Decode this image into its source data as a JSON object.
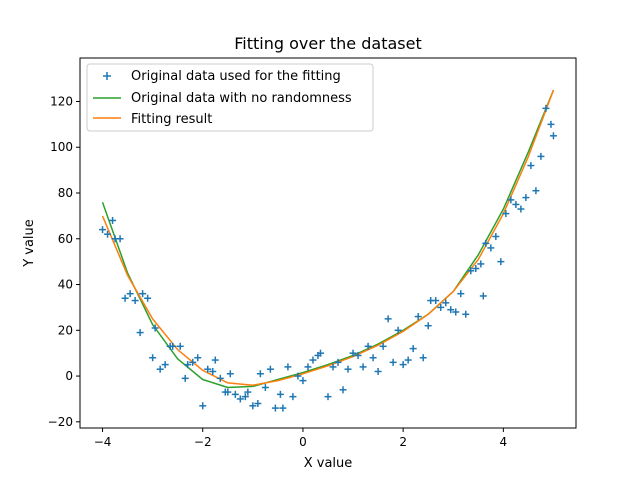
{
  "chart_data": {
    "type": "scatter",
    "title": "Fitting over the dataset",
    "xlabel": "X value",
    "ylabel": "Y value",
    "xlim": [
      -4.45,
      5.45
    ],
    "ylim": [
      -22.7,
      139.0
    ],
    "xticks": [
      -4,
      -2,
      0,
      2,
      4
    ],
    "yticks": [
      -20,
      0,
      20,
      40,
      60,
      80,
      100,
      120
    ],
    "legend_position": "top-left",
    "grid": false,
    "colors": {
      "scatter": "#1f77b4",
      "true_curve": "#2ca02c",
      "fit_curve": "#ff7f0e"
    },
    "series": [
      {
        "name": "Original data used for the fitting",
        "kind": "scatter",
        "marker": "plus",
        "x": [
          -4.0,
          -3.9,
          -3.8,
          -3.75,
          -3.65,
          -3.55,
          -3.45,
          -3.35,
          -3.25,
          -3.2,
          -3.1,
          -3.0,
          -2.95,
          -2.85,
          -2.75,
          -2.65,
          -2.6,
          -2.45,
          -2.35,
          -2.3,
          -2.2,
          -2.1,
          -2.0,
          -1.9,
          -1.8,
          -1.75,
          -1.65,
          -1.55,
          -1.5,
          -1.45,
          -1.35,
          -1.25,
          -1.15,
          -1.1,
          -1.0,
          -0.9,
          -0.85,
          -0.75,
          -0.65,
          -0.55,
          -0.45,
          -0.4,
          -0.3,
          -0.2,
          -0.1,
          0.0,
          0.1,
          0.2,
          0.3,
          0.35,
          0.5,
          0.6,
          0.7,
          0.8,
          0.9,
          1.0,
          1.1,
          1.2,
          1.3,
          1.4,
          1.5,
          1.6,
          1.7,
          1.8,
          1.9,
          2.0,
          2.1,
          2.2,
          2.3,
          2.4,
          2.5,
          2.55,
          2.65,
          2.75,
          2.85,
          2.95,
          3.05,
          3.15,
          3.25,
          3.35,
          3.45,
          3.55,
          3.6,
          3.65,
          3.75,
          3.85,
          3.95,
          4.05,
          4.15,
          4.25,
          4.35,
          4.45,
          4.55,
          4.65,
          4.75,
          4.85,
          4.95,
          5.0
        ],
        "y": [
          64,
          62,
          68,
          60,
          60,
          34,
          36,
          33,
          19,
          36,
          34,
          8,
          21,
          3,
          5,
          13,
          13,
          13,
          -1,
          5,
          6,
          8,
          -13,
          3,
          2,
          7,
          -1,
          -7,
          -7,
          1,
          -8,
          -10,
          -9,
          -7,
          -13,
          -12,
          1,
          -5,
          3,
          -14,
          -8,
          -14,
          4,
          -9,
          0,
          -2,
          4,
          7,
          9,
          10,
          -9,
          4,
          6,
          -6,
          3,
          10,
          9,
          4,
          13,
          8,
          2,
          13,
          25,
          6,
          20,
          5,
          7,
          12,
          26,
          8,
          22,
          33,
          33,
          30,
          32,
          29,
          28,
          36,
          27,
          46,
          47,
          49,
          35,
          58,
          56,
          61,
          50,
          71,
          77,
          75,
          73,
          78,
          92,
          81,
          96,
          117,
          110,
          105
        ]
      },
      {
        "name": "Original data with no randomness",
        "kind": "line",
        "x": [
          -4.0,
          -3.5,
          -3.0,
          -2.5,
          -2.0,
          -1.5,
          -1.0,
          -0.5,
          0.0,
          0.5,
          1.0,
          1.5,
          2.0,
          2.5,
          3.0,
          3.5,
          4.0,
          4.5,
          5.0
        ],
        "y": [
          76,
          45,
          22.5,
          7.5,
          -1.5,
          -5,
          -4.5,
          -1.5,
          1.5,
          5,
          9,
          14,
          20,
          27,
          37,
          53,
          73,
          98,
          125
        ]
      },
      {
        "name": "Fitting result",
        "kind": "line",
        "x": [
          -4.0,
          -3.5,
          -3.0,
          -2.5,
          -2.0,
          -1.5,
          -1.0,
          -0.5,
          0.0,
          0.5,
          1.0,
          1.5,
          2.0,
          2.5,
          3.0,
          3.5,
          4.0,
          4.5,
          5.0
        ],
        "y": [
          70,
          44,
          25,
          11.5,
          2.5,
          -3,
          -4,
          -2,
          1,
          4.5,
          8.5,
          13.5,
          19.5,
          27,
          37,
          51,
          71,
          96,
          125
        ]
      }
    ]
  }
}
